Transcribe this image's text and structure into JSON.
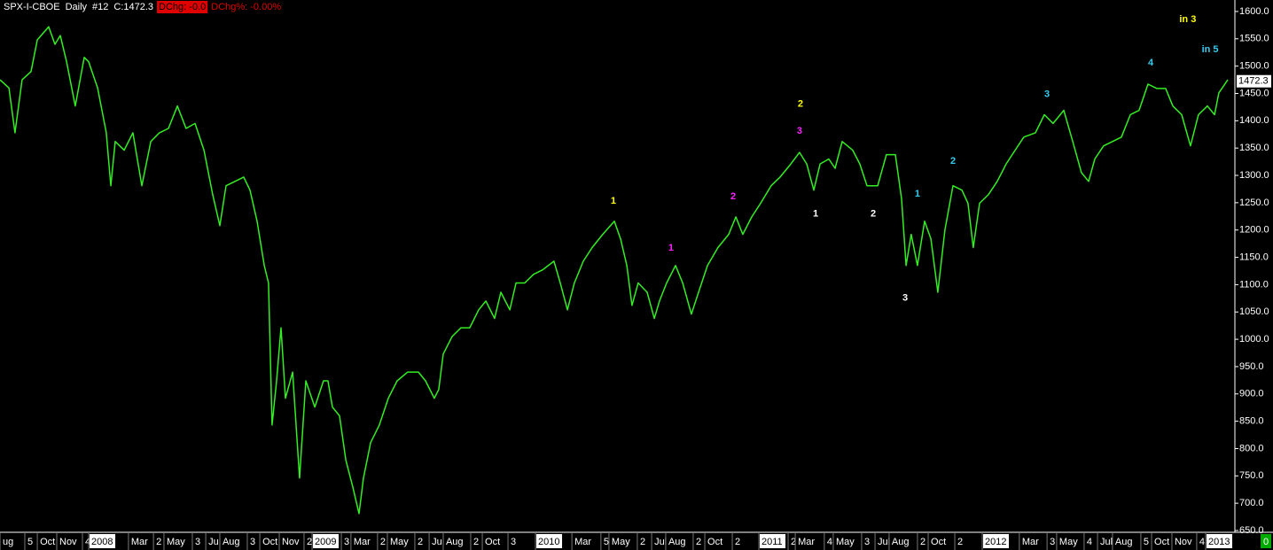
{
  "chart_data": {
    "type": "line",
    "header": [
      "SPX-I-CBOE",
      "Daily",
      "#12",
      "C:1472.3"
    ],
    "change_labels": [
      "DChg: -0.0",
      "DChg%: -0.00%"
    ],
    "last_price": 1472.3,
    "corner_label": "0",
    "grid": false,
    "xlim": [
      2007.603,
      2013.119
    ],
    "ylim": [
      650,
      1621
    ],
    "yticks": [
      {
        "value": 650,
        "label": "650.0"
      },
      {
        "value": 700,
        "label": "700.0"
      },
      {
        "value": 750,
        "label": "750.0"
      },
      {
        "value": 800,
        "label": "800.0"
      },
      {
        "value": 850,
        "label": "850.0"
      },
      {
        "value": 900,
        "label": "900.0"
      },
      {
        "value": 950,
        "label": "950.0"
      },
      {
        "value": 1000,
        "label": "1000.0"
      },
      {
        "value": 1050,
        "label": "1050.0"
      },
      {
        "value": 1100,
        "label": "1100.0"
      },
      {
        "value": 1150,
        "label": "1150.0"
      },
      {
        "value": 1200,
        "label": "1200.0"
      },
      {
        "value": 1250,
        "label": "1250.0"
      },
      {
        "value": 1300,
        "label": "1300.0"
      },
      {
        "value": 1350,
        "label": "1350.0"
      },
      {
        "value": 1400,
        "label": "1400.0"
      },
      {
        "value": 1450,
        "label": "1450.0"
      },
      {
        "value": 1500,
        "label": "1500.0"
      },
      {
        "value": 1550,
        "label": "1550.0"
      },
      {
        "value": 1600,
        "label": "1600.0"
      }
    ],
    "xticks": [
      {
        "value": 2007.603,
        "label": "ug"
      },
      {
        "value": 2007.714,
        "label": "5"
      },
      {
        "value": 2007.77,
        "label": "Oct"
      },
      {
        "value": 2007.857,
        "label": "Nov"
      },
      {
        "value": 2007.972,
        "label": "4"
      },
      {
        "value": 2008.0,
        "label": "2008"
      },
      {
        "value": 2008.178,
        "label": "Mar"
      },
      {
        "value": 2008.29,
        "label": "2"
      },
      {
        "value": 2008.337,
        "label": "May"
      },
      {
        "value": 2008.464,
        "label": "3"
      },
      {
        "value": 2008.524,
        "label": "Jul"
      },
      {
        "value": 2008.587,
        "label": "Aug"
      },
      {
        "value": 2008.71,
        "label": "3"
      },
      {
        "value": 2008.766,
        "label": "Oct"
      },
      {
        "value": 2008.853,
        "label": "Nov"
      },
      {
        "value": 2008.964,
        "label": "2"
      },
      {
        "value": 2009.0,
        "label": "2009"
      },
      {
        "value": 2009.131,
        "label": "3"
      },
      {
        "value": 2009.174,
        "label": "Mar"
      },
      {
        "value": 2009.293,
        "label": "2"
      },
      {
        "value": 2009.337,
        "label": "May"
      },
      {
        "value": 2009.46,
        "label": "2"
      },
      {
        "value": 2009.524,
        "label": "Jul"
      },
      {
        "value": 2009.587,
        "label": "Aug"
      },
      {
        "value": 2009.71,
        "label": "2"
      },
      {
        "value": 2009.762,
        "label": "Oct"
      },
      {
        "value": 2009.877,
        "label": "3"
      },
      {
        "value": 2010.0,
        "label": "2010"
      },
      {
        "value": 2010.163,
        "label": "Mar"
      },
      {
        "value": 2010.293,
        "label": "5"
      },
      {
        "value": 2010.329,
        "label": "May"
      },
      {
        "value": 2010.456,
        "label": "2"
      },
      {
        "value": 2010.52,
        "label": "Jul"
      },
      {
        "value": 2010.583,
        "label": "Aug"
      },
      {
        "value": 2010.706,
        "label": "2"
      },
      {
        "value": 2010.758,
        "label": "Oct"
      },
      {
        "value": 2010.881,
        "label": "2"
      },
      {
        "value": 2011.0,
        "label": "2011"
      },
      {
        "value": 2011.131,
        "label": "2"
      },
      {
        "value": 2011.163,
        "label": "Mar"
      },
      {
        "value": 2011.293,
        "label": "4"
      },
      {
        "value": 2011.333,
        "label": "May"
      },
      {
        "value": 2011.46,
        "label": "3"
      },
      {
        "value": 2011.52,
        "label": "Jul"
      },
      {
        "value": 2011.583,
        "label": "Aug"
      },
      {
        "value": 2011.71,
        "label": "2"
      },
      {
        "value": 2011.758,
        "label": "Oct"
      },
      {
        "value": 2011.877,
        "label": "2"
      },
      {
        "value": 2012.0,
        "label": "2012"
      },
      {
        "value": 2012.166,
        "label": "Mar"
      },
      {
        "value": 2012.29,
        "label": "3"
      },
      {
        "value": 2012.333,
        "label": "May"
      },
      {
        "value": 2012.456,
        "label": "4"
      },
      {
        "value": 2012.516,
        "label": "Jul"
      },
      {
        "value": 2012.583,
        "label": "Aug"
      },
      {
        "value": 2012.71,
        "label": "5"
      },
      {
        "value": 2012.758,
        "label": "Oct"
      },
      {
        "value": 2012.849,
        "label": "Nov"
      },
      {
        "value": 2012.96,
        "label": "4"
      },
      {
        "value": 2013.0,
        "label": "2013"
      }
    ],
    "x": [
      2007.603,
      2007.643,
      2007.67,
      2007.702,
      2007.742,
      2007.77,
      2007.821,
      2007.849,
      2007.873,
      2007.901,
      2007.94,
      2007.98,
      2008.0,
      2008.04,
      2008.079,
      2008.099,
      2008.119,
      2008.159,
      2008.198,
      2008.238,
      2008.278,
      2008.317,
      2008.357,
      2008.397,
      2008.436,
      2008.476,
      2008.516,
      2008.555,
      2008.587,
      2008.615,
      2008.655,
      2008.694,
      2008.722,
      2008.754,
      2008.786,
      2008.805,
      2008.821,
      2008.841,
      2008.861,
      2008.881,
      2008.913,
      2008.944,
      2008.972,
      2009.012,
      2009.051,
      2009.071,
      2009.091,
      2009.123,
      2009.151,
      2009.182,
      2009.21,
      2009.23,
      2009.262,
      2009.301,
      2009.341,
      2009.381,
      2009.428,
      2009.476,
      2009.508,
      2009.547,
      2009.567,
      2009.587,
      2009.627,
      2009.666,
      2009.706,
      2009.746,
      2009.778,
      2009.817,
      2009.845,
      2009.885,
      2009.913,
      2009.952,
      2009.992,
      2010.032,
      2010.083,
      2010.111,
      2010.143,
      2010.174,
      2010.214,
      2010.254,
      2010.301,
      2010.353,
      2010.381,
      2010.409,
      2010.432,
      2010.46,
      2010.5,
      2010.532,
      2010.555,
      2010.587,
      2010.627,
      2010.659,
      2010.698,
      2010.73,
      2010.77,
      2010.817,
      2010.865,
      2010.897,
      2010.928,
      2010.968,
      2011.008,
      2011.055,
      2011.095,
      2011.143,
      2011.182,
      2011.214,
      2011.246,
      2011.274,
      2011.313,
      2011.341,
      2011.373,
      2011.42,
      2011.452,
      2011.484,
      2011.532,
      2011.571,
      2011.611,
      2011.639,
      2011.659,
      2011.682,
      2011.71,
      2011.742,
      2011.77,
      2011.801,
      2011.833,
      2011.869,
      2011.909,
      2011.936,
      2011.96,
      2011.988,
      2012.028,
      2012.067,
      2012.107,
      2012.147,
      2012.186,
      2012.238,
      2012.278,
      2012.317,
      2012.365,
      2012.405,
      2012.444,
      2012.476,
      2012.504,
      2012.543,
      2012.583,
      2012.623,
      2012.663,
      2012.702,
      2012.742,
      2012.782,
      2012.821,
      2012.853,
      2012.893,
      2012.932,
      2012.968,
      2013.008,
      2013.04,
      2013.059,
      2013.099
    ],
    "series": [
      {
        "name": "SPX",
        "color": "#33ee22",
        "values": [
          1475,
          1460,
          1378,
          1475,
          1490,
          1548,
          1572,
          1540,
          1556,
          1508,
          1427,
          1516,
          1508,
          1460,
          1378,
          1281,
          1362,
          1346,
          1378,
          1281,
          1362,
          1378,
          1386,
          1427,
          1386,
          1395,
          1346,
          1265,
          1208,
          1281,
          1289,
          1297,
          1273,
          1216,
          1135,
          1103,
          843,
          924,
          1021,
          892,
          940,
          746,
          924,
          876,
          924,
          924,
          876,
          860,
          779,
          730,
          681,
          746,
          811,
          843,
          892,
          924,
          940,
          940,
          924,
          892,
          908,
          973,
          1005,
          1021,
          1021,
          1054,
          1070,
          1038,
          1086,
          1054,
          1103,
          1103,
          1119,
          1127,
          1143,
          1103,
          1054,
          1103,
          1143,
          1168,
          1192,
          1216,
          1184,
          1135,
          1062,
          1103,
          1086,
          1038,
          1070,
          1103,
          1135,
          1103,
          1046,
          1086,
          1135,
          1168,
          1192,
          1224,
          1192,
          1224,
          1249,
          1281,
          1297,
          1321,
          1342,
          1321,
          1273,
          1321,
          1330,
          1313,
          1362,
          1346,
          1321,
          1281,
          1281,
          1338,
          1338,
          1257,
          1135,
          1192,
          1135,
          1216,
          1184,
          1086,
          1200,
          1281,
          1273,
          1249,
          1168,
          1249,
          1265,
          1289,
          1321,
          1346,
          1370,
          1378,
          1411,
          1395,
          1419,
          1362,
          1305,
          1289,
          1330,
          1354,
          1362,
          1370,
          1411,
          1419,
          1467,
          1459,
          1459,
          1427,
          1411,
          1354,
          1411,
          1427,
          1411,
          1451,
          1475
        ]
      }
    ],
    "annotations": [
      {
        "text": "1",
        "x": 2010.349,
        "y": 1253,
        "color": "#ffff00",
        "size": 20
      },
      {
        "text": "2",
        "x": 2011.186,
        "y": 1430,
        "color": "#ffff00",
        "size": 20
      },
      {
        "text": "in 3",
        "x": 2012.92,
        "y": 1585,
        "color": "#ffff00",
        "size": 20
      },
      {
        "text": "1",
        "x": 2010.607,
        "y": 1167,
        "color": "#ff22ff",
        "size": 15
      },
      {
        "text": "2",
        "x": 2010.885,
        "y": 1261,
        "color": "#ff22ff",
        "size": 15
      },
      {
        "text": "3",
        "x": 2011.182,
        "y": 1381,
        "color": "#ff22ff",
        "size": 15
      },
      {
        "text": "1",
        "x": 2011.254,
        "y": 1229,
        "color": "#ffffff",
        "size": 15
      },
      {
        "text": "2",
        "x": 2011.512,
        "y": 1229,
        "color": "#ffffff",
        "size": 15
      },
      {
        "text": "3",
        "x": 2011.655,
        "y": 1075,
        "color": "#ffffff",
        "size": 15
      },
      {
        "text": "1",
        "x": 2011.71,
        "y": 1266,
        "color": "#33ccee",
        "size": 15
      },
      {
        "text": "2",
        "x": 2011.869,
        "y": 1326,
        "color": "#33ccee",
        "size": 15
      },
      {
        "text": "3",
        "x": 2012.29,
        "y": 1448,
        "color": "#33ccee",
        "size": 15
      },
      {
        "text": "4",
        "x": 2012.754,
        "y": 1506,
        "color": "#33ccee",
        "size": 15
      },
      {
        "text": "in 5",
        "x": 2013.02,
        "y": 1530,
        "color": "#33ccee",
        "size": 15
      }
    ]
  }
}
